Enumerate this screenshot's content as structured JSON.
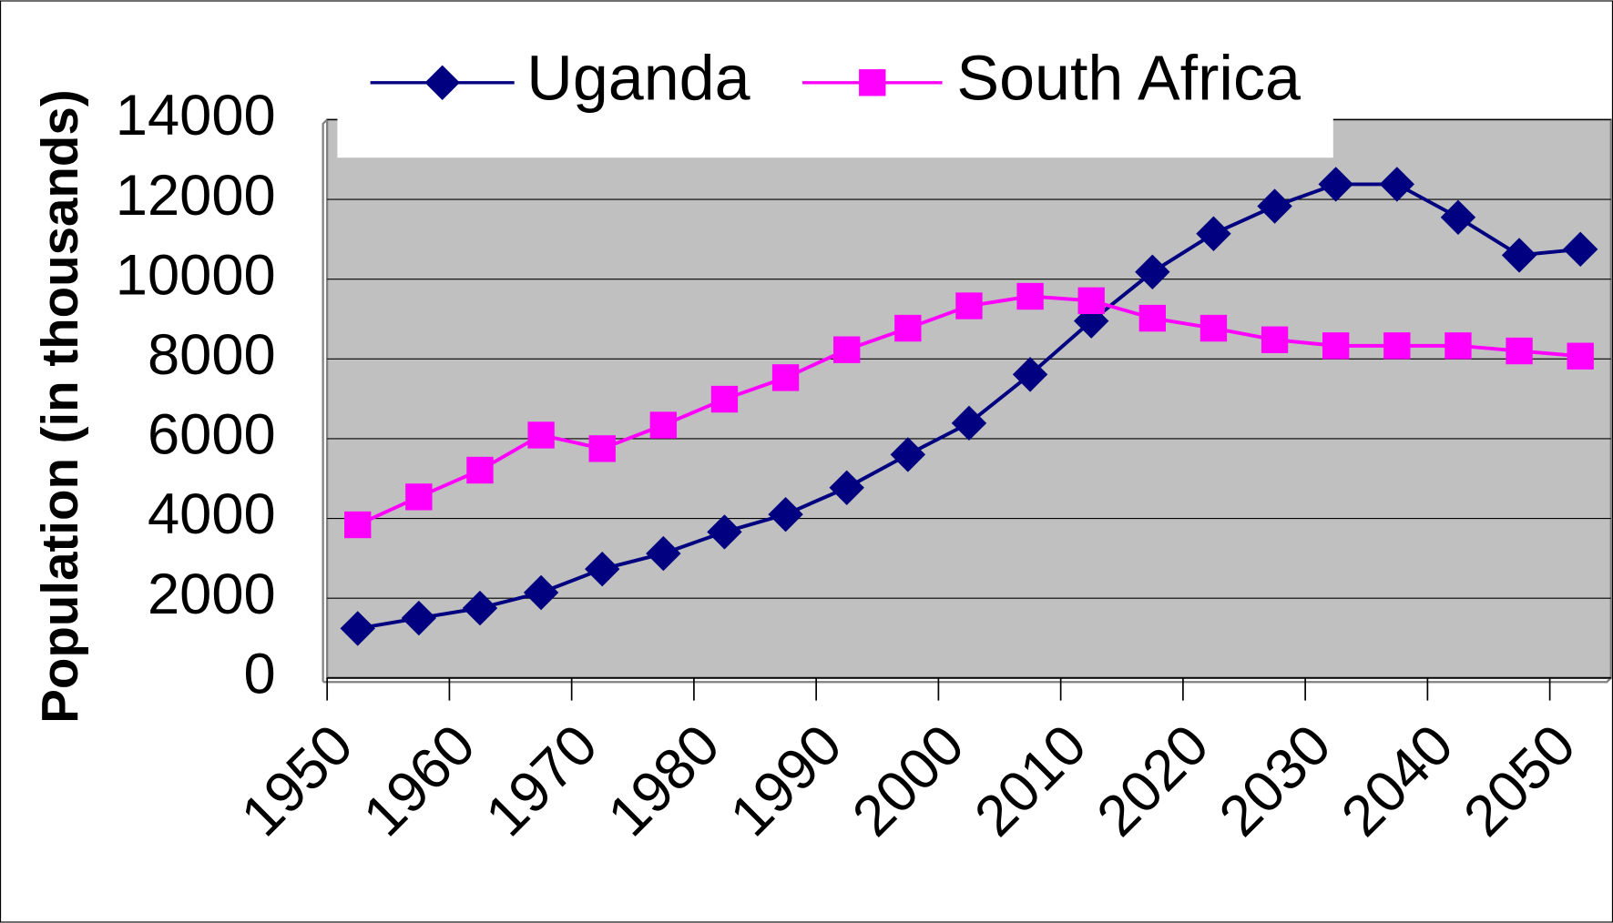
{
  "chart_data": {
    "type": "line",
    "y_label": "Population (in thousands)",
    "categories": [
      "1950",
      null,
      "1960",
      null,
      "1970",
      null,
      "1980",
      null,
      "1990",
      null,
      "2000",
      null,
      "2010",
      null,
      "2020",
      null,
      "2030",
      null,
      "2040",
      null,
      "2050"
    ],
    "series": [
      {
        "name": "Uganda",
        "color": "#000080",
        "marker": "diamond",
        "values": [
          1240,
          1500,
          1750,
          2140,
          2730,
          3120,
          3660,
          4100,
          4770,
          5600,
          6390,
          7610,
          8950,
          10180,
          11140,
          11830,
          12380,
          12380,
          11550,
          10600,
          10750
        ]
      },
      {
        "name": "South Africa",
        "color": "#ff00ff",
        "marker": "square",
        "values": [
          3840,
          4540,
          5210,
          6090,
          5750,
          6340,
          6990,
          7530,
          8230,
          8770,
          9330,
          9570,
          9460,
          9020,
          8770,
          8480,
          8330,
          8330,
          8330,
          8200,
          8070
        ]
      }
    ],
    "ylim": [
      0,
      14000
    ],
    "yticks": [
      0,
      2000,
      4000,
      6000,
      8000,
      10000,
      12000,
      14000
    ],
    "grid": true,
    "legend": "top",
    "plot_background": "#c0c0c0"
  }
}
